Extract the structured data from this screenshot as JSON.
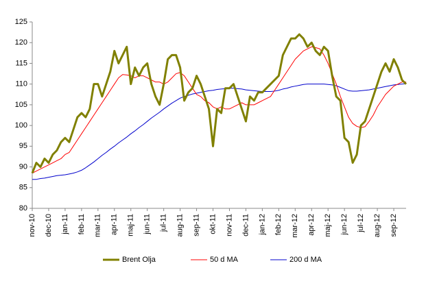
{
  "chart_data": {
    "type": "line",
    "categories": [
      "nov-10",
      null,
      null,
      null,
      "dec-10",
      null,
      null,
      null,
      "jan-11",
      null,
      null,
      null,
      "feb-11",
      null,
      null,
      null,
      "mar-11",
      null,
      null,
      null,
      "apr-11",
      null,
      null,
      null,
      "maj-11",
      null,
      null,
      null,
      "jun-11",
      null,
      null,
      null,
      "jul-11",
      null,
      null,
      null,
      "aug-11",
      null,
      null,
      null,
      "sep-11",
      null,
      null,
      null,
      "okt-11",
      null,
      null,
      null,
      "nov-11",
      null,
      null,
      null,
      "dec-11",
      null,
      null,
      null,
      "jan-12",
      null,
      null,
      null,
      "feb-12",
      null,
      null,
      null,
      "mar-12",
      null,
      null,
      null,
      "apr-12",
      null,
      null,
      null,
      "maj-12",
      null,
      null,
      null,
      "jun-12",
      null,
      null,
      null,
      "jul-12",
      null,
      null,
      null,
      "aug-12",
      null,
      null,
      null,
      "sep-12",
      null,
      null,
      null
    ],
    "series": [
      {
        "name": "Brent Olja",
        "color": "#808000",
        "width": 3,
        "values": [
          88.5,
          91,
          90,
          92,
          91,
          93,
          94,
          96,
          97,
          96,
          99,
          102,
          103,
          102,
          104,
          110,
          110,
          107,
          110,
          113,
          118,
          115,
          117,
          119,
          110,
          114,
          112,
          114,
          115,
          110,
          107,
          105,
          110,
          116,
          117,
          117,
          114,
          106,
          108,
          109,
          112,
          110,
          107,
          104,
          95,
          104,
          103,
          109,
          109,
          110,
          107,
          104,
          101,
          107,
          106,
          108,
          108,
          109,
          110,
          111,
          112,
          117,
          119,
          121,
          121,
          122,
          121,
          119,
          120,
          118,
          117,
          119,
          118,
          112,
          107,
          106,
          97,
          96,
          91,
          93,
          100,
          101,
          104,
          107,
          110,
          113,
          115,
          113,
          116,
          114,
          111,
          110
        ]
      },
      {
        "name": "50 d MA",
        "color": "#ff0000",
        "width": 1,
        "values": [
          88.5,
          89,
          89.5,
          90,
          90.5,
          91,
          91.5,
          92,
          93,
          93.5,
          95,
          96.5,
          98,
          99.5,
          101,
          102.5,
          104,
          105.5,
          107,
          108.5,
          110,
          111.5,
          112.3,
          112.2,
          112,
          111.5,
          112,
          112,
          111.5,
          111,
          110.5,
          110.5,
          110,
          110.5,
          111.5,
          112.5,
          112.8,
          112,
          110.5,
          109,
          107.5,
          107,
          106,
          105.5,
          104.5,
          104,
          104.5,
          104,
          104,
          104.5,
          105,
          105.5,
          105,
          105,
          105,
          105.5,
          106,
          106.5,
          107,
          108.5,
          110,
          111.5,
          113,
          114.5,
          116,
          117,
          118,
          118.5,
          119,
          118.8,
          118.5,
          117,
          115,
          112.5,
          110,
          107,
          104.5,
          102,
          100.5,
          99.8,
          99.5,
          99.7,
          101,
          102.5,
          104.5,
          106,
          107.5,
          108.5,
          109.5,
          110,
          110.5,
          110.5
        ]
      },
      {
        "name": "200 d MA",
        "color": "#0000cc",
        "width": 1,
        "values": [
          87,
          87,
          87.2,
          87.3,
          87.5,
          87.7,
          87.9,
          88,
          88.1,
          88.3,
          88.5,
          88.8,
          89.2,
          89.8,
          90.5,
          91.2,
          92,
          92.8,
          93.5,
          94.3,
          95,
          95.8,
          96.5,
          97.2,
          98,
          98.7,
          99.5,
          100.2,
          101,
          101.8,
          102.5,
          103.2,
          104,
          104.7,
          105.4,
          106,
          106.6,
          107,
          107.3,
          107.6,
          107.8,
          108,
          108.2,
          108.4,
          108.5,
          108.7,
          108.8,
          108.9,
          109,
          109,
          108.9,
          108.8,
          108.6,
          108.5,
          108.4,
          108.3,
          108.2,
          108.2,
          108.2,
          108.3,
          108.5,
          108.8,
          109,
          109.3,
          109.5,
          109.7,
          109.9,
          110,
          110,
          110,
          110,
          110,
          109.9,
          109.8,
          109.6,
          109.2,
          108.8,
          108.4,
          108.3,
          108.3,
          108.4,
          108.5,
          108.6,
          108.8,
          109,
          109.2,
          109.4,
          109.6,
          109.8,
          109.9,
          110,
          110.1
        ]
      }
    ],
    "ylim": [
      80,
      125
    ],
    "yticks": [
      80,
      85,
      90,
      95,
      100,
      105,
      110,
      115,
      120,
      125
    ],
    "legend": "bottom"
  }
}
